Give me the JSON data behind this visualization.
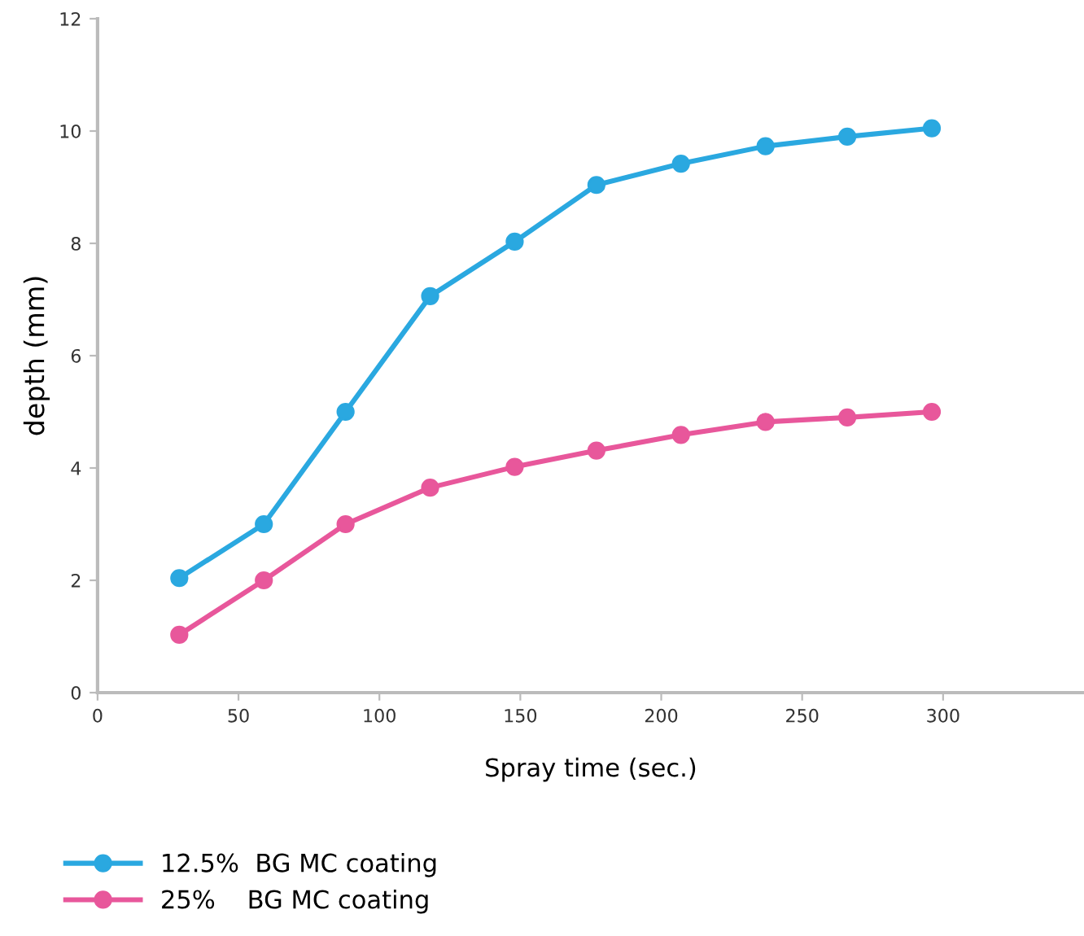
{
  "chart_data": {
    "type": "line",
    "xlabel": "Spray time (sec.)",
    "ylabel": "depth (mm)",
    "x": [
      29,
      59,
      88,
      118,
      148,
      177,
      207,
      237,
      266,
      296
    ],
    "series": [
      {
        "name": "12.5%  BG MC coating",
        "color": "#2aa8e0",
        "values": [
          2.04,
          3.0,
          5.0,
          7.06,
          8.03,
          9.04,
          9.42,
          9.73,
          9.9,
          10.05
        ]
      },
      {
        "name": "25%    BG MC coating",
        "color": "#e8579b",
        "values": [
          1.03,
          2.0,
          3.0,
          3.65,
          4.02,
          4.31,
          4.59,
          4.82,
          4.9,
          5.0
        ]
      }
    ],
    "xlim": [
      0,
      350
    ],
    "xticks": [
      0,
      50,
      100,
      150,
      200,
      250,
      300
    ],
    "ylim": [
      0,
      12
    ],
    "yticks": [
      0,
      2,
      4,
      6,
      8,
      10,
      12
    ],
    "grid": false,
    "legend": "bottom left",
    "marker": "circle",
    "line_style": "solid"
  }
}
